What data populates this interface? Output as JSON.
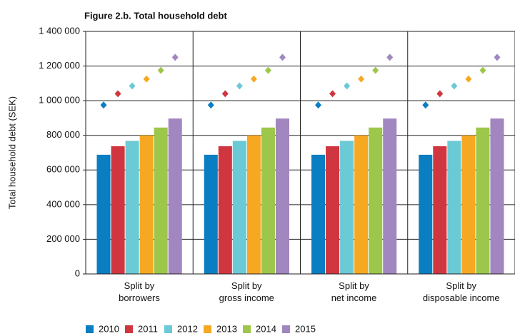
{
  "chart_data": {
    "type": "bar",
    "title": "Figure 2.b. Total household debt",
    "y_label": "Total household debt (SEK)",
    "categories": [
      "Split by\nborrowers",
      "Split by\ngross income",
      "Split by\nnet income",
      "Split by\ndisposable income"
    ],
    "series": [
      {
        "name": "2010",
        "color": "#0a7ec2",
        "values": [
          688000,
          688000,
          688000,
          688000
        ],
        "markers": [
          975000,
          975000,
          975000,
          975000
        ]
      },
      {
        "name": "2011",
        "color": "#d0363f",
        "values": [
          737000,
          737000,
          737000,
          737000
        ],
        "markers": [
          1040000,
          1040000,
          1040000,
          1040000
        ]
      },
      {
        "name": "2012",
        "color": "#6acad6",
        "values": [
          768000,
          768000,
          768000,
          768000
        ],
        "markers": [
          1085000,
          1085000,
          1085000,
          1085000
        ]
      },
      {
        "name": "2013",
        "color": "#f7a823",
        "values": [
          800000,
          800000,
          800000,
          800000
        ],
        "markers": [
          1125000,
          1125000,
          1125000,
          1125000
        ]
      },
      {
        "name": "2014",
        "color": "#9cc74b",
        "values": [
          845000,
          845000,
          845000,
          845000
        ],
        "markers": [
          1175000,
          1175000,
          1175000,
          1175000
        ]
      },
      {
        "name": "2015",
        "color": "#a286bf",
        "values": [
          897000,
          897000,
          897000,
          897000
        ],
        "markers": [
          1250000,
          1250000,
          1250000,
          1250000
        ]
      }
    ],
    "ylim": [
      0,
      1400000
    ],
    "yticks": [
      0,
      {
        "value": 200000,
        "label": "200 000"
      },
      {
        "value": 400000,
        "label": "400 000"
      },
      {
        "value": 600000,
        "label": "600 000"
      },
      {
        "value": 800000,
        "label": "800 000"
      },
      {
        "value": 1000000,
        "label": "1 000 000"
      },
      {
        "value": 1200000,
        "label": "1 200 000"
      },
      {
        "value": 1400000,
        "label": "1 400 000"
      }
    ],
    "grid": true
  }
}
